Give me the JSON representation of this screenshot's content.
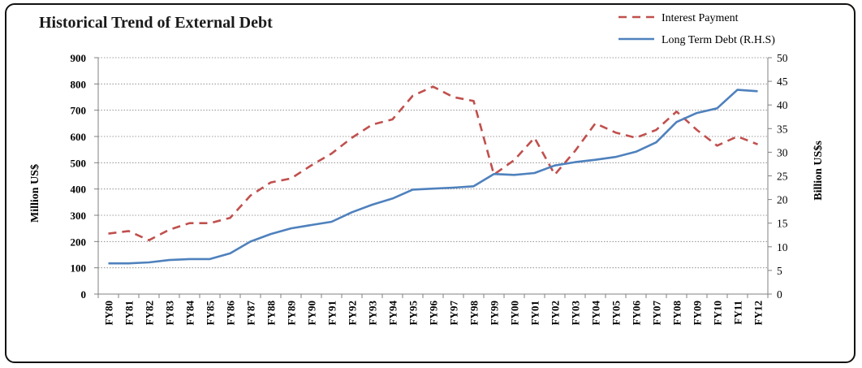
{
  "chart_data": {
    "type": "line",
    "title": "Historical Trend of External Debt",
    "ylabel_left": "Million US$",
    "ylabel_right": "Billion US$s",
    "ylim_left": [
      0,
      900
    ],
    "ylim_right": [
      0,
      50
    ],
    "yticks_left": [
      "0",
      "100",
      "200",
      "300",
      "400",
      "500",
      "600",
      "700",
      "800",
      "900"
    ],
    "yticks_right": [
      "0",
      "5",
      "10",
      "15",
      "20",
      "25",
      "30",
      "35",
      "40",
      "45",
      "50"
    ],
    "grid": "horizontal dotted",
    "legend_position": "top-right",
    "categories": [
      "FY80",
      "FY81",
      "FY82",
      "FY83",
      "FY84",
      "FY85",
      "FY86",
      "FY87",
      "FY88",
      "FY89",
      "FY90",
      "FY91",
      "FY92",
      "FY93",
      "FY94",
      "FY95",
      "FY96",
      "FY97",
      "FY98",
      "FY99",
      "FY00",
      "FY01",
      "FY02",
      "FY03",
      "FY04",
      "FY05",
      "FY06",
      "FY07",
      "FY08",
      "FY09",
      "FY10",
      "FY11",
      "FY12"
    ],
    "series": [
      {
        "name": "Interest Payment",
        "axis": "left",
        "style": "dashed",
        "color": "#c0504d",
        "values": [
          230,
          240,
          205,
          245,
          270,
          270,
          290,
          375,
          425,
          440,
          490,
          535,
          595,
          645,
          665,
          755,
          790,
          750,
          735,
          455,
          510,
          595,
          455,
          545,
          650,
          615,
          595,
          625,
          695,
          625,
          565,
          600,
          570
        ]
      },
      {
        "name": "Long Term Debt (R.H.S)",
        "axis": "right",
        "style": "solid",
        "color": "#4f81bd",
        "values": [
          6.5,
          6.5,
          6.7,
          7.2,
          7.4,
          7.4,
          8.6,
          11.1,
          12.7,
          13.9,
          14.6,
          15.3,
          17.3,
          18.9,
          20.2,
          22.1,
          22.3,
          22.5,
          22.8,
          25.4,
          25.2,
          25.6,
          27.2,
          27.9,
          28.4,
          29.0,
          30.1,
          32.1,
          36.4,
          38.3,
          39.3,
          43.2,
          42.9
        ]
      }
    ]
  }
}
